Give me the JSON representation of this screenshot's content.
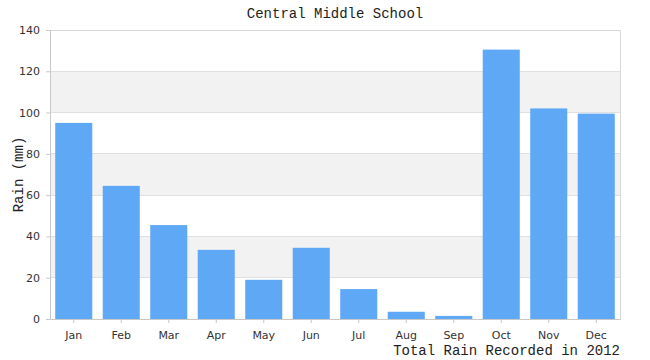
{
  "chart_data": {
    "type": "bar",
    "title": "Central Middle School",
    "x_label": "Total Rain Recorded in 2012",
    "y_label": "Rain (mm)",
    "categories": [
      "Jan",
      "Feb",
      "Mar",
      "Apr",
      "May",
      "Jun",
      "Jul",
      "Aug",
      "Sep",
      "Oct",
      "Nov",
      "Dec"
    ],
    "values": [
      95,
      64.5,
      45.5,
      33.5,
      19,
      34.5,
      14.5,
      3.5,
      1.5,
      130.5,
      102,
      99.5
    ],
    "color": "#5ea8f5",
    "ylim": [
      0,
      140
    ],
    "yticks": [
      0,
      20,
      40,
      60,
      80,
      100,
      120,
      140
    ],
    "grid": true
  }
}
